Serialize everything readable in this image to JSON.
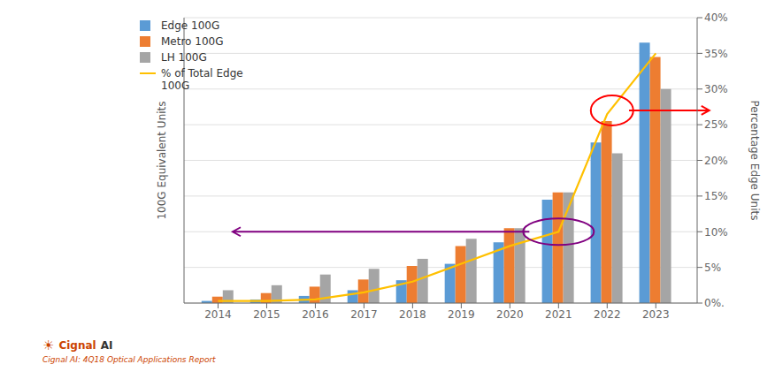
{
  "chart_data": {
    "type": "bar",
    "x": [
      2014,
      2015,
      2016,
      2017,
      2018,
      2019,
      2020,
      2021,
      2022,
      2023
    ],
    "xlim": [
      2013.3,
      2023.85
    ],
    "xticks": [
      2014,
      2015,
      2016,
      2017,
      2018,
      2019,
      2020,
      2021,
      2022,
      2023
    ],
    "ylim": [
      0,
      40
    ],
    "y2lim": [
      0,
      40
    ],
    "y2ticks": [
      {
        "value": 0,
        "label": "0%."
      },
      {
        "value": 5,
        "label": "5%"
      },
      {
        "value": 10,
        "label": "10%"
      },
      {
        "value": 15,
        "label": "15%"
      },
      {
        "value": 20,
        "label": "20%"
      },
      {
        "value": 25,
        "label": "25%"
      },
      {
        "value": 30,
        "label": "30%"
      },
      {
        "value": 35,
        "label": "35%"
      },
      {
        "value": 40,
        "label": "40%"
      }
    ],
    "ylabel": "100G Equivalent Units",
    "y2label": "Percentage Edge Units",
    "grid": true,
    "legend": "upper left",
    "series": [
      {
        "name": "Edge 100G",
        "type": "bar",
        "color": "#5B9BD5",
        "values": [
          0.3,
          0.5,
          1.0,
          1.8,
          3.2,
          5.5,
          8.5,
          14.5,
          22.5,
          36.5
        ]
      },
      {
        "name": "Metro 100G",
        "type": "bar",
        "color": "#ED7D31",
        "values": [
          0.9,
          1.4,
          2.3,
          3.3,
          5.2,
          8.0,
          10.5,
          15.5,
          25.5,
          34.5
        ]
      },
      {
        "name": "LH 100G",
        "type": "bar",
        "color": "#A5A5A5",
        "values": [
          1.8,
          2.5,
          4.0,
          4.8,
          6.2,
          9.0,
          10.5,
          15.5,
          21.0,
          30.0
        ]
      },
      {
        "name": "% of Total Edge\n100G",
        "type": "line",
        "axis": "y2",
        "color": "#FFC000",
        "values": [
          0.3,
          0.3,
          0.5,
          1.5,
          3.0,
          5.5,
          8.0,
          10.0,
          26.5,
          35.0
        ]
      }
    ],
    "shapes": [
      {
        "x": 2021.0,
        "y": 10.0,
        "color": "purple",
        "arrow_from": 2020.4,
        "arrow_to": 2014.3
      },
      {
        "x": 2022.1,
        "y": 27.0,
        "color": "red",
        "arrow_from": 2022.45,
        "arrow_to": 2024.1
      }
    ],
    "annotations": [
      {
        "text": "☀",
        "color": "#CC4400"
      },
      {
        "text": "Cignal",
        "color": "#CC4400"
      },
      {
        "text": "AI",
        "color": "#333333"
      },
      {
        "text": "Cignal AI: 4Q18 Optical Applications Report",
        "color": "#CC4400"
      }
    ]
  }
}
